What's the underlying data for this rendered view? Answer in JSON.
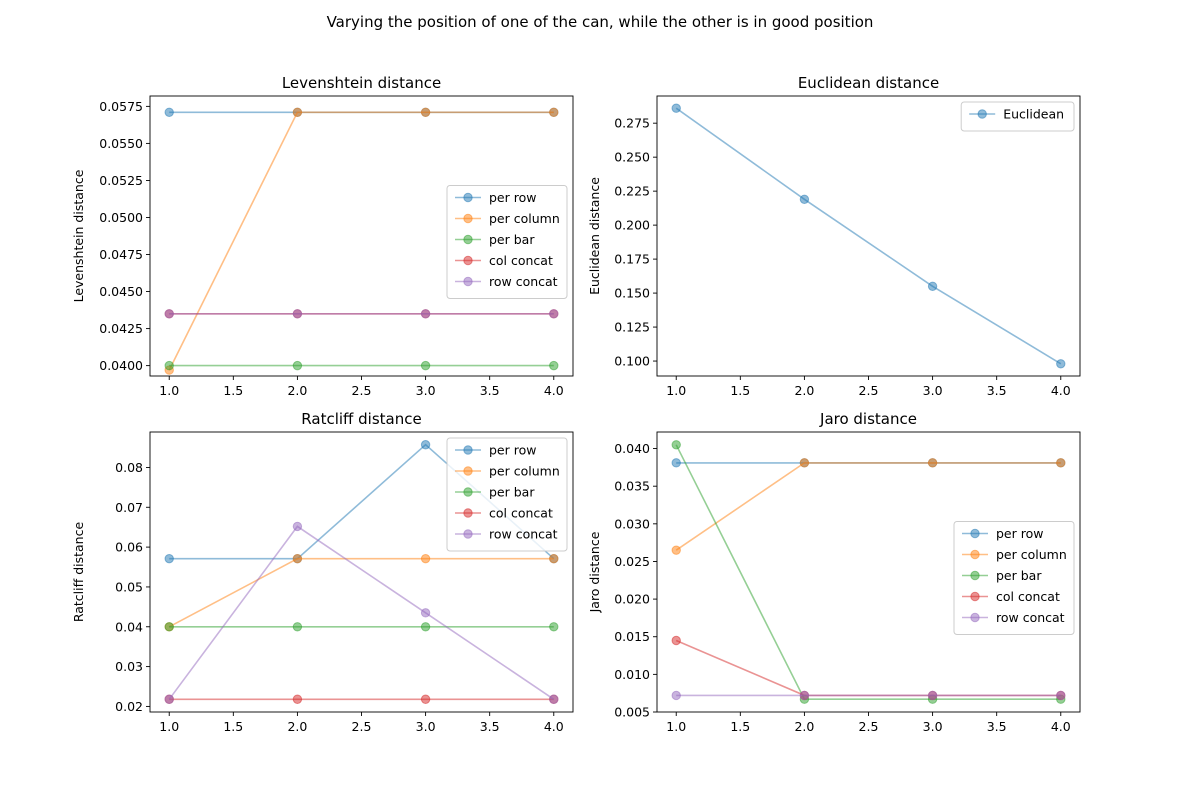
{
  "figure": {
    "suptitle": "Varying the position of one of the can, while the other is in good position"
  },
  "colors": {
    "per row": "#1f77b4",
    "per column": "#ff7f0e",
    "per bar": "#2ca02c",
    "col concat": "#d62728",
    "row concat": "#9467bd",
    "Euclidean": "#1f77b4"
  },
  "chart_data": [
    {
      "type": "line",
      "title": "Levenshtein distance",
      "xlabel": "",
      "ylabel": "Levenshtein distance",
      "x": [
        1,
        2,
        3,
        4
      ],
      "xlim": [
        0.85,
        4.15
      ],
      "ylim": [
        0.0393,
        0.0582
      ],
      "xticks": [
        "1.0",
        "1.5",
        "2.0",
        "2.5",
        "3.0",
        "3.5",
        "4.0"
      ],
      "yticks": [
        "0.0400",
        "0.0425",
        "0.0450",
        "0.0475",
        "0.0500",
        "0.0525",
        "0.0550",
        "0.0575"
      ],
      "legend": "center-right",
      "grid": false,
      "series": [
        {
          "name": "per row",
          "values": [
            0.0571,
            0.0571,
            0.0571,
            0.0571
          ]
        },
        {
          "name": "per column",
          "values": [
            0.0397,
            0.0571,
            0.0571,
            0.0571
          ]
        },
        {
          "name": "per bar",
          "values": [
            0.04,
            0.04,
            0.04,
            0.04
          ]
        },
        {
          "name": "col concat",
          "values": [
            0.0435,
            0.0435,
            0.0435,
            0.0435
          ]
        },
        {
          "name": "row concat",
          "values": [
            0.0435,
            0.0435,
            0.0435,
            0.0435
          ]
        }
      ]
    },
    {
      "type": "line",
      "title": "Euclidean distance",
      "xlabel": "",
      "ylabel": "Euclidean distance",
      "x": [
        1,
        2,
        3,
        4
      ],
      "xlim": [
        0.85,
        4.15
      ],
      "ylim": [
        0.089,
        0.295
      ],
      "xticks": [
        "1.0",
        "1.5",
        "2.0",
        "2.5",
        "3.0",
        "3.5",
        "4.0"
      ],
      "yticks": [
        "0.100",
        "0.125",
        "0.150",
        "0.175",
        "0.200",
        "0.225",
        "0.250",
        "0.275"
      ],
      "legend": "top-right",
      "grid": false,
      "series": [
        {
          "name": "Euclidean",
          "values": [
            0.286,
            0.219,
            0.155,
            0.098
          ]
        }
      ]
    },
    {
      "type": "line",
      "title": "Ratcliff distance",
      "xlabel": "",
      "ylabel": "Ratcliff distance",
      "x": [
        1,
        2,
        3,
        4
      ],
      "xlim": [
        0.85,
        4.15
      ],
      "ylim": [
        0.0186,
        0.0889
      ],
      "xticks": [
        "1.0",
        "1.5",
        "2.0",
        "2.5",
        "3.0",
        "3.5",
        "4.0"
      ],
      "yticks": [
        "0.02",
        "0.03",
        "0.04",
        "0.05",
        "0.06",
        "0.07",
        "0.08"
      ],
      "legend": "top-right",
      "grid": false,
      "series": [
        {
          "name": "per row",
          "values": [
            0.0571,
            0.0571,
            0.0857,
            0.0571
          ]
        },
        {
          "name": "per column",
          "values": [
            0.04,
            0.0571,
            0.0571,
            0.0571
          ]
        },
        {
          "name": "per bar",
          "values": [
            0.04,
            0.04,
            0.04,
            0.04
          ]
        },
        {
          "name": "col concat",
          "values": [
            0.0218,
            0.0218,
            0.0218,
            0.0218
          ]
        },
        {
          "name": "row concat",
          "values": [
            0.0218,
            0.0652,
            0.0435,
            0.0218
          ]
        }
      ]
    },
    {
      "type": "line",
      "title": "Jaro distance",
      "xlabel": "",
      "ylabel": "Jaro distance",
      "x": [
        1,
        2,
        3,
        4
      ],
      "xlim": [
        0.85,
        4.15
      ],
      "ylim": [
        0.005,
        0.0422
      ],
      "xticks": [
        "1.0",
        "1.5",
        "2.0",
        "2.5",
        "3.0",
        "3.5",
        "4.0"
      ],
      "yticks": [
        "0.005",
        "0.010",
        "0.015",
        "0.020",
        "0.025",
        "0.030",
        "0.035",
        "0.040"
      ],
      "legend": "center-right",
      "grid": false,
      "series": [
        {
          "name": "per row",
          "values": [
            0.0381,
            0.0381,
            0.0381,
            0.0381
          ]
        },
        {
          "name": "per column",
          "values": [
            0.0265,
            0.0381,
            0.0381,
            0.0381
          ]
        },
        {
          "name": "per bar",
          "values": [
            0.0405,
            0.0067,
            0.0067,
            0.0067
          ]
        },
        {
          "name": "col concat",
          "values": [
            0.0145,
            0.0072,
            0.0072,
            0.0072
          ]
        },
        {
          "name": "row concat",
          "values": [
            0.0072,
            0.0072,
            0.0072,
            0.0072
          ]
        }
      ]
    }
  ]
}
